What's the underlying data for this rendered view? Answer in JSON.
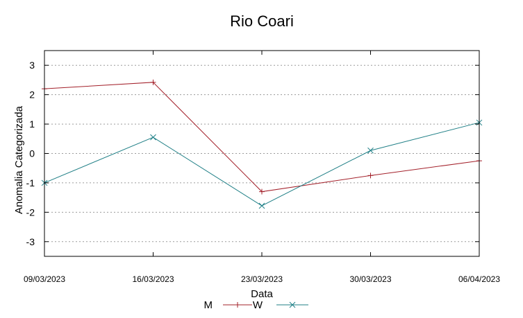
{
  "chart_data": {
    "type": "line",
    "title": "Rio Coari",
    "xlabel": "Data",
    "ylabel": "Anomalia Categorizada",
    "categories": [
      "09/03/2023",
      "16/03/2023",
      "23/03/2023",
      "30/03/2023",
      "06/04/2023"
    ],
    "yticks": [
      "3",
      "2",
      "1",
      "0",
      "-1",
      "-2",
      "-3"
    ],
    "ylim": [
      -3.5,
      3.5
    ],
    "grid": true,
    "legend_position": "bottom",
    "series": [
      {
        "name": "M",
        "color": "#a3202a",
        "marker": "plus",
        "values": [
          2.2,
          2.42,
          -1.3,
          -0.75,
          -0.25
        ]
      },
      {
        "name": "W",
        "color": "#1f7f86",
        "marker": "cross",
        "values": [
          -1.0,
          0.55,
          -1.78,
          0.1,
          1.05
        ]
      }
    ]
  }
}
